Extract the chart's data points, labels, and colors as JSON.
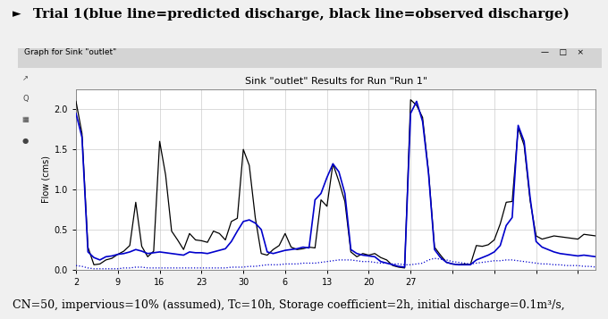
{
  "title_text": "Trial 1(blue line=predicted discharge, black line=observed discharge)",
  "window_title": "Graph for Sink \"outlet\"",
  "plot_title": "Sink \"outlet\" Results for Run \"Run 1\"",
  "ylabel": "Flow (cms)",
  "ylim": [
    0.0,
    2.25
  ],
  "caption": "CN=50, impervious=10% (assumed), Tc=10h, Storage coefficient=2h, initial discharge=0.1m³/s,",
  "black_y": [
    2.1,
    1.7,
    0.28,
    0.06,
    0.07,
    0.12,
    0.14,
    0.19,
    0.23,
    0.3,
    0.84,
    0.29,
    0.16,
    0.23,
    1.6,
    1.18,
    0.48,
    0.37,
    0.25,
    0.45,
    0.37,
    0.36,
    0.34,
    0.48,
    0.45,
    0.37,
    0.6,
    0.64,
    1.5,
    1.3,
    0.65,
    0.2,
    0.18,
    0.25,
    0.3,
    0.45,
    0.28,
    0.25,
    0.26,
    0.28,
    0.27,
    0.87,
    0.79,
    1.32,
    1.1,
    0.85,
    0.22,
    0.16,
    0.2,
    0.18,
    0.2,
    0.15,
    0.12,
    0.05,
    0.03,
    0.02,
    2.12,
    2.05,
    1.9,
    1.22,
    0.28,
    0.18,
    0.09,
    0.07,
    0.06,
    0.07,
    0.06,
    0.3,
    0.29,
    0.31,
    0.37,
    0.57,
    0.84,
    0.85,
    1.77,
    1.55,
    0.86,
    0.42,
    0.38,
    0.4,
    0.42,
    0.41,
    0.4,
    0.39,
    0.38,
    0.44,
    0.43,
    0.42
  ],
  "blue_solid_y": [
    1.95,
    1.65,
    0.22,
    0.15,
    0.12,
    0.16,
    0.17,
    0.19,
    0.2,
    0.22,
    0.25,
    0.23,
    0.2,
    0.21,
    0.22,
    0.21,
    0.2,
    0.19,
    0.18,
    0.22,
    0.21,
    0.21,
    0.2,
    0.22,
    0.24,
    0.26,
    0.35,
    0.48,
    0.6,
    0.62,
    0.58,
    0.5,
    0.22,
    0.2,
    0.22,
    0.24,
    0.25,
    0.26,
    0.28,
    0.27,
    0.87,
    0.95,
    1.15,
    1.32,
    1.22,
    0.95,
    0.25,
    0.2,
    0.18,
    0.17,
    0.16,
    0.1,
    0.08,
    0.06,
    0.04,
    0.03,
    1.95,
    2.1,
    1.85,
    1.2,
    0.25,
    0.15,
    0.09,
    0.07,
    0.06,
    0.06,
    0.06,
    0.12,
    0.15,
    0.18,
    0.22,
    0.3,
    0.55,
    0.65,
    1.8,
    1.6,
    0.9,
    0.35,
    0.28,
    0.25,
    0.22,
    0.2,
    0.19,
    0.18,
    0.17,
    0.18,
    0.17,
    0.16
  ],
  "blue_dotted_y": [
    0.05,
    0.04,
    0.02,
    0.01,
    0.01,
    0.01,
    0.01,
    0.01,
    0.02,
    0.02,
    0.03,
    0.03,
    0.02,
    0.02,
    0.02,
    0.02,
    0.02,
    0.02,
    0.02,
    0.02,
    0.02,
    0.02,
    0.02,
    0.02,
    0.02,
    0.02,
    0.03,
    0.03,
    0.03,
    0.04,
    0.04,
    0.05,
    0.06,
    0.06,
    0.06,
    0.07,
    0.07,
    0.07,
    0.08,
    0.08,
    0.08,
    0.09,
    0.1,
    0.11,
    0.12,
    0.12,
    0.12,
    0.11,
    0.1,
    0.1,
    0.09,
    0.08,
    0.08,
    0.07,
    0.07,
    0.06,
    0.06,
    0.07,
    0.08,
    0.12,
    0.14,
    0.13,
    0.12,
    0.1,
    0.09,
    0.08,
    0.07,
    0.08,
    0.09,
    0.1,
    0.11,
    0.11,
    0.12,
    0.12,
    0.11,
    0.1,
    0.09,
    0.08,
    0.07,
    0.07,
    0.06,
    0.06,
    0.05,
    0.05,
    0.05,
    0.04,
    0.04,
    0.03
  ],
  "n_points": 88,
  "xtick_positions": [
    0,
    7,
    14,
    21,
    28,
    35,
    42,
    49,
    56,
    63,
    70,
    77,
    84
  ],
  "xtick_labels": [
    "2",
    "9",
    "16",
    "23",
    "30",
    "6",
    "13",
    "20",
    "27",
    "",
    "",
    "",
    ""
  ],
  "ytick_positions": [
    0.0,
    0.5,
    1.0,
    1.5,
    2.0
  ],
  "ytick_labels": [
    "0.0",
    "0.5",
    "1.0",
    "1.5",
    "2.0"
  ],
  "fig_bg_color": "#f0f0f0",
  "win_bg_color": "#e8e8e8",
  "titlebar_color": "#d4d4d4",
  "plot_bg_color": "#ffffff",
  "blue_color": "#0000cc",
  "black_color": "#000000",
  "title_fontsize": 11,
  "caption_fontsize": 9,
  "plot_title_fontsize": 8,
  "axis_fontsize": 7,
  "ylabel_fontsize": 7
}
